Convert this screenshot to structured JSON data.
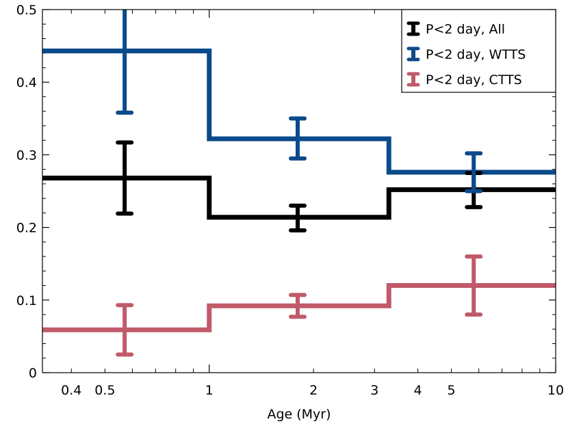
{
  "chart_data": {
    "type": "line",
    "step": true,
    "title": "",
    "xlabel": "Age (Myr)",
    "ylabel": "",
    "xscale": "log",
    "xlim": [
      0.33,
      10
    ],
    "ylim": [
      0,
      0.5
    ],
    "grid": false,
    "legend_position": "top-right",
    "x_ticks": [
      {
        "value": 0.4,
        "label": "0.4"
      },
      {
        "value": 0.5,
        "label": "0.5"
      },
      {
        "value": 1,
        "label": "1"
      },
      {
        "value": 2,
        "label": "2"
      },
      {
        "value": 3,
        "label": "3"
      },
      {
        "value": 4,
        "label": "4"
      },
      {
        "value": 5,
        "label": "5"
      },
      {
        "value": 10,
        "label": "10"
      }
    ],
    "y_ticks": [
      {
        "value": 0,
        "label": "0"
      },
      {
        "value": 0.1,
        "label": "0.1"
      },
      {
        "value": 0.2,
        "label": "0.2"
      },
      {
        "value": 0.3,
        "label": "0.3"
      },
      {
        "value": 0.4,
        "label": "0.4"
      },
      {
        "value": 0.5,
        "label": "0.5"
      }
    ],
    "bin_edges": [
      0.33,
      1,
      3.3,
      10
    ],
    "bin_centers": [
      0.57,
      1.8,
      5.8
    ],
    "series": [
      {
        "name": "P<2 day, All",
        "color": "#000000",
        "values": [
          0.268,
          0.214,
          0.252
        ],
        "err_low": [
          0.219,
          0.196,
          0.228
        ],
        "err_high": [
          0.317,
          0.23,
          0.275
        ]
      },
      {
        "name": "P<2 day, WTTS",
        "color": "#0b4a8b",
        "values": [
          0.443,
          0.322,
          0.276
        ],
        "err_low": [
          0.358,
          0.295,
          0.25
        ],
        "err_high": [
          0.53,
          0.35,
          0.302
        ]
      },
      {
        "name": "P<2 day, CTTS",
        "color": "#c05a6a",
        "values": [
          0.059,
          0.092,
          0.12
        ],
        "err_low": [
          0.025,
          0.077,
          0.08
        ],
        "err_high": [
          0.093,
          0.107,
          0.16
        ]
      }
    ]
  }
}
